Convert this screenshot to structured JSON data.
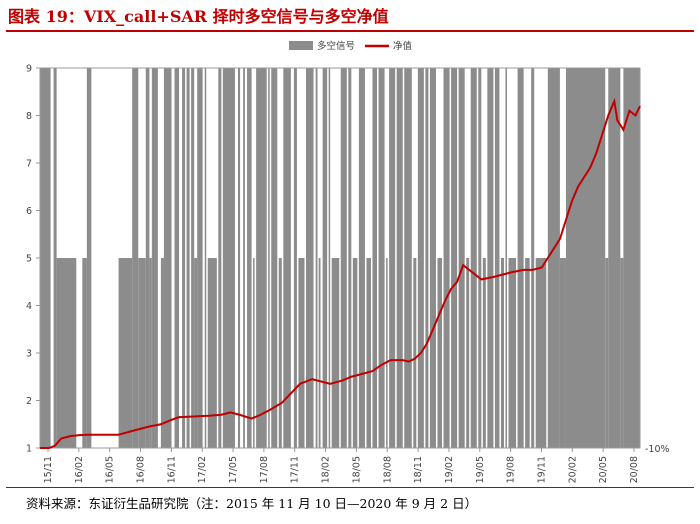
{
  "page_title": "图表 19：VIX_call+SAR 择时多空信号与多空净值",
  "source_note": "资料来源：东证衍生品研究院（注：2015 年 11 月 10 日—2020 年 9 月 2 日）",
  "colors": {
    "title": "#c00000",
    "signal": "#8c8c8c",
    "nav": "#c00000"
  },
  "chart_data": {
    "type": "line",
    "legend": [
      "多空信号",
      "净值"
    ],
    "legend_position": "top-center",
    "grid": false,
    "ylim": [
      1,
      9
    ],
    "y_ticks": [
      "1",
      "2",
      "3",
      "4",
      "5",
      "6",
      "7",
      "8",
      "9"
    ],
    "y_right_label": "-10%",
    "x_ticks": [
      "15/11",
      "16/02",
      "16/05",
      "16/08",
      "16/11",
      "17/02",
      "17/05",
      "17/08",
      "17/11",
      "18/02",
      "18/05",
      "18/08",
      "18/11",
      "19/02",
      "19/05",
      "19/08",
      "19/11",
      "20/02",
      "20/05",
      "20/08"
    ],
    "series": [
      {
        "name": "净值",
        "x": [
          0,
          0.3,
          0.5,
          0.7,
          1,
          1.3,
          1.6,
          2,
          2.3,
          2.6,
          3,
          3.3,
          3.6,
          4,
          4.3,
          4.6,
          5,
          5.3,
          5.6,
          6,
          6.3,
          6.6,
          7,
          7.3,
          7.6,
          8,
          8.3,
          8.6,
          9,
          9.3,
          9.6,
          10,
          10.3,
          10.6,
          11,
          11.3,
          11.6,
          12,
          12.2,
          12.4,
          12.6,
          12.8,
          13,
          13.2,
          13.4,
          13.6,
          13.8,
          14,
          14.3,
          14.6,
          15,
          15.3,
          15.6,
          16,
          16.3,
          16.6,
          16.8,
          17,
          17.2,
          17.4,
          17.6,
          17.8,
          18,
          18.2,
          18.4,
          18.6,
          18.8,
          19,
          19.1,
          19.3,
          19.5,
          19.7,
          19.85
        ],
        "values": [
          1.0,
          1.0,
          1.05,
          1.2,
          1.25,
          1.27,
          1.28,
          1.28,
          1.28,
          1.28,
          1.35,
          1.4,
          1.45,
          1.5,
          1.58,
          1.65,
          1.66,
          1.67,
          1.68,
          1.7,
          1.75,
          1.7,
          1.62,
          1.7,
          1.8,
          1.95,
          2.15,
          2.35,
          2.45,
          2.4,
          2.35,
          2.42,
          2.5,
          2.55,
          2.62,
          2.75,
          2.85,
          2.85,
          2.82,
          2.88,
          3.0,
          3.2,
          3.5,
          3.8,
          4.1,
          4.35,
          4.5,
          4.85,
          4.7,
          4.55,
          4.6,
          4.65,
          4.7,
          4.75,
          4.75,
          4.8,
          5.0,
          5.2,
          5.4,
          5.8,
          6.2,
          6.5,
          6.7,
          6.9,
          7.2,
          7.6,
          8.0,
          8.3,
          7.9,
          7.7,
          8.1,
          8.0,
          8.2
        ]
      },
      {
        "name": "多空信号",
        "levels": [
          1,
          5,
          9
        ],
        "intervals": [
          [
            0.0,
            0.35,
            9
          ],
          [
            0.45,
            0.55,
            9
          ],
          [
            0.55,
            1.2,
            5
          ],
          [
            1.4,
            1.55,
            5
          ],
          [
            1.55,
            1.7,
            9
          ],
          [
            2.6,
            3.05,
            5
          ],
          [
            3.05,
            3.25,
            9
          ],
          [
            3.25,
            3.5,
            5
          ],
          [
            3.5,
            3.62,
            9
          ],
          [
            3.62,
            3.7,
            5
          ],
          [
            3.7,
            3.9,
            9
          ],
          [
            4.0,
            4.1,
            5
          ],
          [
            4.1,
            4.35,
            9
          ],
          [
            4.45,
            4.6,
            9
          ],
          [
            4.7,
            4.8,
            9
          ],
          [
            4.85,
            4.95,
            9
          ],
          [
            5.0,
            5.1,
            9
          ],
          [
            5.1,
            5.2,
            5
          ],
          [
            5.2,
            5.38,
            9
          ],
          [
            5.45,
            5.5,
            9
          ],
          [
            5.55,
            5.85,
            5
          ],
          [
            5.9,
            6.0,
            9
          ],
          [
            6.05,
            6.45,
            9
          ],
          [
            6.55,
            6.62,
            9
          ],
          [
            6.72,
            6.78,
            9
          ],
          [
            6.85,
            7.0,
            9
          ],
          [
            7.05,
            7.1,
            5
          ],
          [
            7.15,
            7.5,
            9
          ],
          [
            7.55,
            7.6,
            9
          ],
          [
            7.65,
            7.85,
            9
          ],
          [
            7.9,
            8.0,
            5
          ],
          [
            8.05,
            8.3,
            9
          ],
          [
            8.4,
            8.5,
            9
          ],
          [
            8.55,
            8.75,
            5
          ],
          [
            8.8,
            9.05,
            9
          ],
          [
            9.12,
            9.18,
            9
          ],
          [
            9.22,
            9.28,
            5
          ],
          [
            9.35,
            9.5,
            9
          ],
          [
            9.55,
            9.6,
            9
          ],
          [
            9.65,
            9.9,
            5
          ],
          [
            9.95,
            10.15,
            9
          ],
          [
            10.2,
            10.3,
            9
          ],
          [
            10.35,
            10.5,
            5
          ],
          [
            10.55,
            10.75,
            9
          ],
          [
            10.8,
            10.95,
            5
          ],
          [
            11.0,
            11.15,
            9
          ],
          [
            11.2,
            11.4,
            9
          ],
          [
            11.45,
            11.5,
            5
          ],
          [
            11.55,
            11.75,
            9
          ],
          [
            11.8,
            12.0,
            9
          ],
          [
            12.05,
            12.3,
            9
          ],
          [
            12.35,
            12.45,
            5
          ],
          [
            12.5,
            12.7,
            9
          ],
          [
            12.75,
            12.85,
            9
          ],
          [
            12.9,
            13.1,
            9
          ],
          [
            13.15,
            13.3,
            5
          ],
          [
            13.35,
            13.55,
            9
          ],
          [
            13.6,
            13.8,
            9
          ],
          [
            13.85,
            14.05,
            9
          ],
          [
            14.1,
            14.2,
            5
          ],
          [
            14.25,
            14.45,
            9
          ],
          [
            14.5,
            14.6,
            9
          ],
          [
            14.65,
            14.75,
            5
          ],
          [
            14.8,
            15.0,
            9
          ],
          [
            15.05,
            15.2,
            9
          ],
          [
            15.25,
            15.35,
            5
          ],
          [
            15.4,
            15.45,
            9
          ],
          [
            15.5,
            15.75,
            5
          ],
          [
            15.8,
            16.0,
            9
          ],
          [
            16.05,
            16.2,
            5
          ],
          [
            16.25,
            16.35,
            9
          ],
          [
            16.4,
            16.75,
            5
          ],
          [
            16.8,
            17.2,
            9
          ],
          [
            17.2,
            17.4,
            5
          ],
          [
            17.4,
            18.7,
            9
          ],
          [
            18.7,
            18.8,
            5
          ],
          [
            18.8,
            19.2,
            9
          ],
          [
            19.2,
            19.3,
            5
          ],
          [
            19.3,
            19.85,
            9
          ]
        ]
      }
    ]
  }
}
